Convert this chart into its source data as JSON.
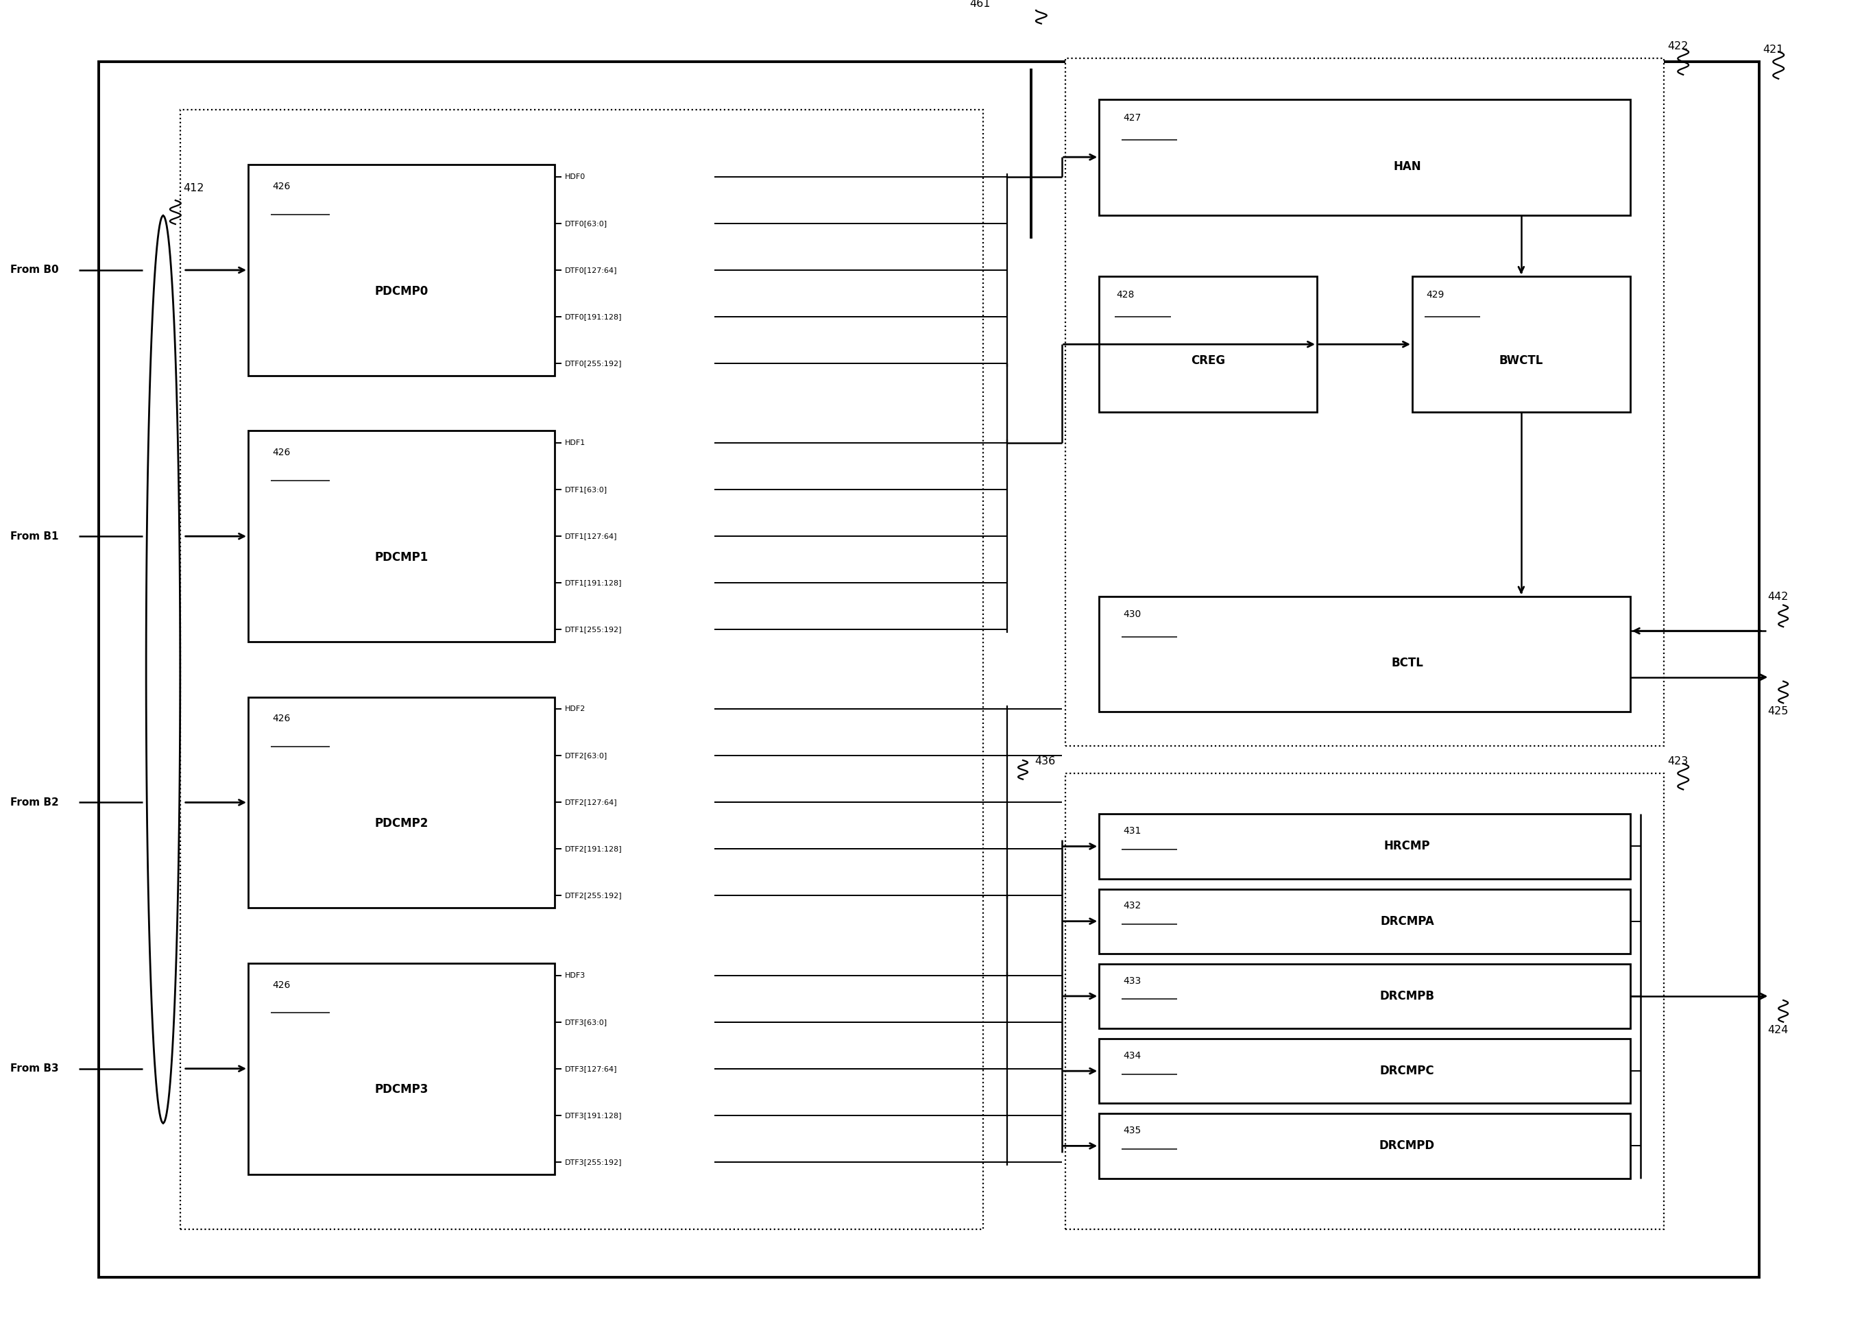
{
  "fig_width": 27.16,
  "fig_height": 19.37,
  "pdcmp_boxes": [
    {
      "num": "426",
      "name": "PDCMP0",
      "signals": [
        "HDF0",
        "DTF0[63:0]",
        "DTF0[127:64]",
        "DTF0[191:128]",
        "DTF0[255:192]"
      ]
    },
    {
      "num": "426",
      "name": "PDCMP1",
      "signals": [
        "HDF1",
        "DTF1[63:0]",
        "DTF1[127:64]",
        "DTF1[191:128]",
        "DTF1[255:192]"
      ]
    },
    {
      "num": "426",
      "name": "PDCMP2",
      "signals": [
        "HDF2",
        "DTF2[63:0]",
        "DTF2[127:64]",
        "DTF2[191:128]",
        "DTF2[255:192]"
      ]
    },
    {
      "num": "426",
      "name": "PDCMP3",
      "signals": [
        "HDF3",
        "DTF3[63:0]",
        "DTF3[127:64]",
        "DTF3[191:128]",
        "DTF3[255:192]"
      ]
    }
  ],
  "from_labels": [
    "From B0",
    "From B1",
    "From B2",
    "From B3"
  ],
  "right_top_boxes": [
    {
      "num": "427",
      "name": "HAN"
    },
    {
      "num": "428",
      "name": "CREG"
    },
    {
      "num": "429",
      "name": "BWCTL"
    },
    {
      "num": "430",
      "name": "BCTL"
    }
  ],
  "right_bottom_boxes": [
    {
      "num": "431",
      "name": "HRCMP"
    },
    {
      "num": "432",
      "name": "DRCMPA"
    },
    {
      "num": "433",
      "name": "DRCMPB"
    },
    {
      "num": "434",
      "name": "DRCMPC"
    },
    {
      "num": "435",
      "name": "DRCMPD"
    }
  ],
  "ref_nums": [
    "412",
    "421",
    "422",
    "423",
    "424",
    "425",
    "436",
    "442",
    "461"
  ]
}
